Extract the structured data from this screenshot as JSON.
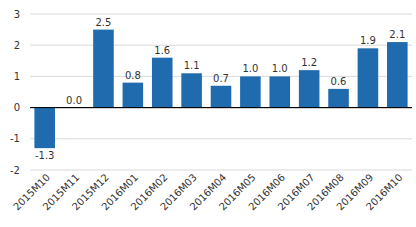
{
  "chart_data": {
    "type": "bar",
    "categories": [
      "2015M10",
      "2015M11",
      "2015M12",
      "2016M01",
      "2016M02",
      "2016M03",
      "2016M04",
      "2016M05",
      "2016M06",
      "2016M07",
      "2016M08",
      "2016M09",
      "2016M10"
    ],
    "values": [
      -1.3,
      0.0,
      2.5,
      0.8,
      1.6,
      1.1,
      0.7,
      1.0,
      1.0,
      1.2,
      0.6,
      1.9,
      2.1
    ],
    "value_labels": [
      "-1.3",
      "0.0",
      "2.5",
      "0.8",
      "1.6",
      "1.1",
      "0.7",
      "1.0",
      "1.0",
      "1.2",
      "0.6",
      "1.9",
      "2.1"
    ],
    "color": "#1f6bad",
    "ylim": [
      -2,
      3
    ],
    "yticks": [
      -2,
      -1,
      0,
      1,
      2,
      3
    ],
    "grid": true,
    "data_labels": true
  }
}
